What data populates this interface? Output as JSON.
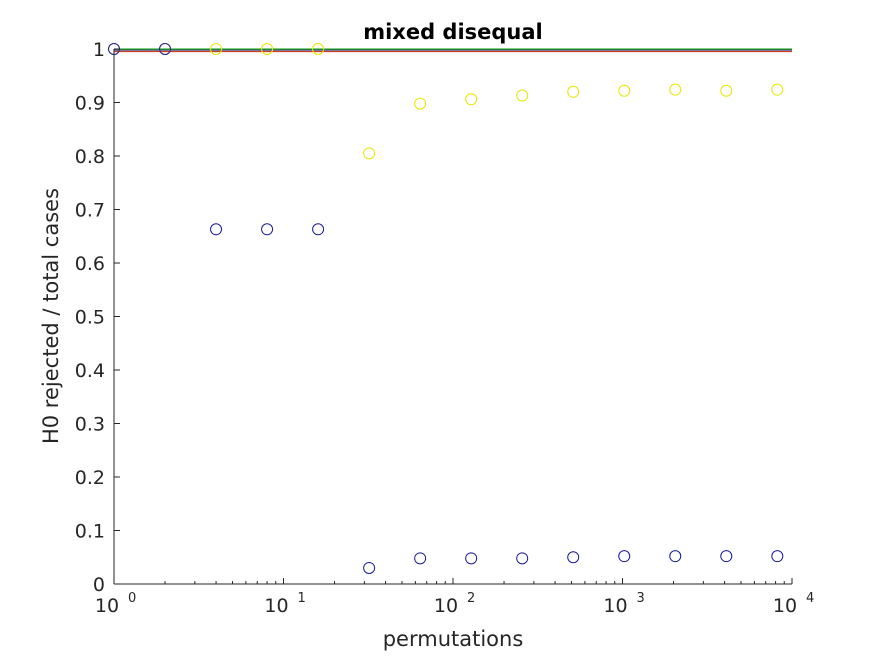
{
  "chart_data": {
    "type": "scatter",
    "title": "mixed disequal",
    "xlabel": "permutations",
    "ylabel": "H0 rejected / total cases",
    "xscale": "log",
    "xlim": [
      1,
      10000
    ],
    "ylim": [
      0,
      1
    ],
    "grid": false,
    "x_ticks": [
      {
        "base": "10",
        "exp": "0",
        "value": 1
      },
      {
        "base": "10",
        "exp": "1",
        "value": 10
      },
      {
        "base": "10",
        "exp": "2",
        "value": 100
      },
      {
        "base": "10",
        "exp": "3",
        "value": 1000
      },
      {
        "base": "10",
        "exp": "4",
        "value": 10000
      }
    ],
    "y_ticks": [
      {
        "label": "0",
        "value": 0
      },
      {
        "label": "0.1",
        "value": 0.1
      },
      {
        "label": "0.2",
        "value": 0.2
      },
      {
        "label": "0.3",
        "value": 0.3
      },
      {
        "label": "0.4",
        "value": 0.4
      },
      {
        "label": "0.5",
        "value": 0.5
      },
      {
        "label": "0.6",
        "value": 0.6
      },
      {
        "label": "0.7",
        "value": 0.7
      },
      {
        "label": "0.8",
        "value": 0.8
      },
      {
        "label": "0.9",
        "value": 0.9
      },
      {
        "label": "1",
        "value": 1
      }
    ],
    "x": [
      1,
      2,
      4,
      8,
      16,
      32,
      64,
      128,
      256,
      512,
      1024,
      2048,
      4096,
      8192
    ],
    "series": [
      {
        "marker": "circle",
        "color": "#e6e600",
        "values": [
          1.0,
          1.0,
          1.0,
          1.0,
          1.0,
          0.805,
          0.898,
          0.906,
          0.913,
          0.92,
          0.922,
          0.924,
          0.922,
          0.924
        ]
      },
      {
        "marker": "circle",
        "color": "#1a1a9a",
        "values": [
          1.0,
          1.0,
          0.663,
          0.663,
          0.663,
          0.03,
          0.048,
          0.048,
          0.048,
          0.05,
          0.052,
          0.052,
          0.052,
          0.052
        ]
      }
    ],
    "reference_lines": [
      {
        "y": 1.0,
        "color": "#00a000"
      },
      {
        "y": 0.995,
        "color": "#cc2200"
      },
      {
        "y": 0.998,
        "color": "#202060"
      }
    ]
  }
}
